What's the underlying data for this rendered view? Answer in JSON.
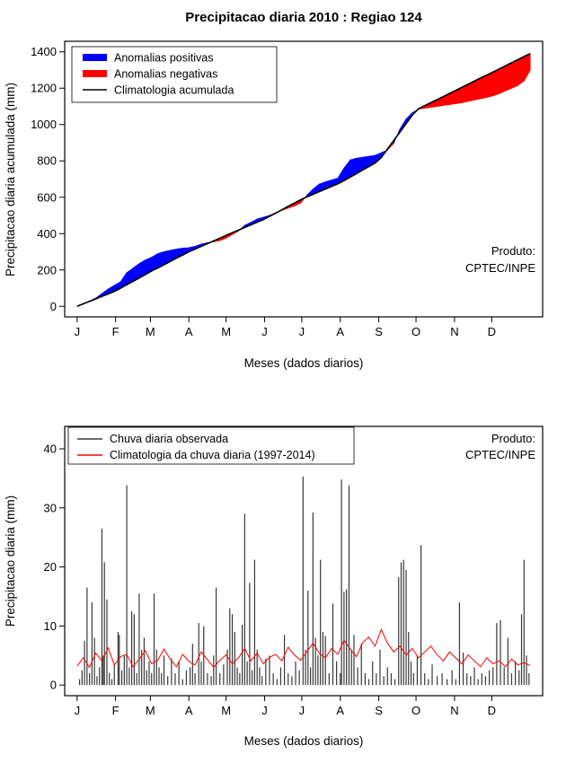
{
  "chart_data": [
    {
      "type": "area",
      "title": "Precipitacao diaria 2010 : Regiao 124",
      "xlabel": "Meses (dados diarios)",
      "ylabel": "Precipitacao diaria acumulada (mm)",
      "ylim": [
        0,
        1400
      ],
      "yticks": [
        0,
        200,
        400,
        600,
        800,
        1000,
        1200,
        1400
      ],
      "xlim_days": [
        0,
        365
      ],
      "months": {
        "labels": [
          "J",
          "F",
          "M",
          "A",
          "M",
          "J",
          "J",
          "A",
          "S",
          "O",
          "N",
          "D"
        ],
        "days": [
          0,
          31,
          59,
          90,
          120,
          151,
          181,
          212,
          243,
          273,
          304,
          334
        ]
      },
      "legend": [
        {
          "label": "Anomalias positivas",
          "color": "#0000FF",
          "thick": true
        },
        {
          "label": "Anomalias negativas",
          "color": "#FF0000",
          "thick": true
        },
        {
          "label": "Climatologia acumulada",
          "color": "#000000",
          "thick": false
        }
      ],
      "annotation": {
        "line1": "Produto:",
        "line2": "CPTEC/INPE"
      },
      "x_step_days": 5,
      "observed": [
        0,
        12,
        30,
        45,
        70,
        95,
        115,
        135,
        185,
        210,
        235,
        255,
        270,
        290,
        300,
        308,
        315,
        320,
        322,
        330,
        342,
        350,
        355,
        362,
        375,
        395,
        415,
        445,
        462,
        480,
        490,
        500,
        515,
        528,
        540,
        552,
        568,
        610,
        645,
        672,
        685,
        695,
        705,
        760,
        805,
        815,
        820,
        825,
        830,
        845,
        860,
        895,
        975,
        1030,
        1065,
        1085,
        1090,
        1095,
        1100,
        1105,
        1110,
        1115,
        1120,
        1128,
        1135,
        1142,
        1150,
        1158,
        1170,
        1185,
        1200,
        1215,
        1240,
        1300
      ],
      "climatology": [
        0,
        14,
        27,
        41,
        55,
        68,
        82,
        100,
        119,
        137,
        156,
        175,
        194,
        211,
        229,
        247,
        265,
        282,
        300,
        315,
        330,
        345,
        360,
        375,
        390,
        405,
        419,
        434,
        448,
        463,
        477,
        495,
        513,
        531,
        550,
        568,
        586,
        602,
        616,
        631,
        645,
        660,
        674,
        692,
        711,
        730,
        750,
        769,
        788,
        818,
        865,
        912,
        958,
        1005,
        1052,
        1087,
        1104,
        1121,
        1137,
        1154,
        1171,
        1188,
        1205,
        1222,
        1239,
        1256,
        1272,
        1289,
        1306,
        1323,
        1340,
        1357,
        1374,
        1390
      ]
    },
    {
      "type": "bar",
      "title": "",
      "xlabel": "Meses (dados diarios)",
      "ylabel": "Precipitacao diaria (mm)",
      "ylim": [
        0,
        40
      ],
      "yticks": [
        0,
        10,
        20,
        30,
        40
      ],
      "xlim_days": [
        0,
        365
      ],
      "months": {
        "labels": [
          "J",
          "F",
          "M",
          "A",
          "M",
          "J",
          "J",
          "A",
          "S",
          "O",
          "N",
          "D"
        ],
        "days": [
          0,
          31,
          59,
          90,
          120,
          151,
          181,
          212,
          243,
          273,
          304,
          334
        ]
      },
      "legend": [
        {
          "label": "Chuva diaria observada",
          "color": "#383838"
        },
        {
          "label": "Climatologia da chuva diaria (1997-2014)",
          "color": "#FF0000"
        }
      ],
      "annotation": {
        "line1": "Produto:",
        "line2": "CPTEC/INPE"
      },
      "bar_color": "#383838",
      "bars": [
        [
          2,
          1
        ],
        [
          4,
          2.5
        ],
        [
          6,
          7.5
        ],
        [
          8,
          16.5
        ],
        [
          10,
          2
        ],
        [
          12,
          14
        ],
        [
          14,
          8
        ],
        [
          16,
          1.5
        ],
        [
          18,
          3
        ],
        [
          20,
          26.5
        ],
        [
          21,
          5
        ],
        [
          22,
          20.8
        ],
        [
          24,
          14.5
        ],
        [
          26,
          2
        ],
        [
          28,
          1
        ],
        [
          30,
          3.5
        ],
        [
          33,
          9
        ],
        [
          34,
          8.5
        ],
        [
          36,
          2.5
        ],
        [
          38,
          5
        ],
        [
          40,
          33.8
        ],
        [
          42,
          3
        ],
        [
          44,
          12.5
        ],
        [
          46,
          12
        ],
        [
          48,
          2
        ],
        [
          50,
          15.5
        ],
        [
          52,
          6
        ],
        [
          54,
          8
        ],
        [
          56,
          2.5
        ],
        [
          58,
          4
        ],
        [
          60,
          2
        ],
        [
          62,
          15.5
        ],
        [
          64,
          6
        ],
        [
          66,
          3
        ],
        [
          68,
          2
        ],
        [
          70,
          5
        ],
        [
          73,
          1.5
        ],
        [
          76,
          4.5
        ],
        [
          79,
          2
        ],
        [
          82,
          4
        ],
        [
          85,
          1
        ],
        [
          88,
          2.5
        ],
        [
          91,
          3
        ],
        [
          93,
          7
        ],
        [
          95,
          2
        ],
        [
          98,
          10.5
        ],
        [
          100,
          4
        ],
        [
          102,
          10
        ],
        [
          105,
          2
        ],
        [
          108,
          1.5
        ],
        [
          110,
          5
        ],
        [
          112,
          16.5
        ],
        [
          115,
          2
        ],
        [
          118,
          3.5
        ],
        [
          121,
          6
        ],
        [
          123,
          13
        ],
        [
          125,
          12
        ],
        [
          127,
          9
        ],
        [
          129,
          3
        ],
        [
          131,
          2
        ],
        [
          133,
          10.2
        ],
        [
          135,
          29
        ],
        [
          137,
          4
        ],
        [
          139,
          17.3
        ],
        [
          141,
          2.5
        ],
        [
          143,
          21.2
        ],
        [
          145,
          6
        ],
        [
          147,
          3
        ],
        [
          149,
          1.5
        ],
        [
          152,
          4.5
        ],
        [
          155,
          5
        ],
        [
          158,
          2
        ],
        [
          161,
          1
        ],
        [
          164,
          3
        ],
        [
          167,
          8.5
        ],
        [
          170,
          2
        ],
        [
          173,
          1.5
        ],
        [
          176,
          4
        ],
        [
          179,
          2.5
        ],
        [
          182,
          35.3
        ],
        [
          184,
          6
        ],
        [
          186,
          16
        ],
        [
          188,
          3
        ],
        [
          190,
          29.2
        ],
        [
          192,
          8
        ],
        [
          194,
          5
        ],
        [
          196,
          21.2
        ],
        [
          198,
          9
        ],
        [
          200,
          8.3
        ],
        [
          203,
          2
        ],
        [
          206,
          13.8
        ],
        [
          209,
          4
        ],
        [
          212,
          2
        ],
        [
          213,
          34.8
        ],
        [
          215,
          15.8
        ],
        [
          217,
          16.2
        ],
        [
          219,
          33.8
        ],
        [
          221,
          6
        ],
        [
          223,
          8.5
        ],
        [
          226,
          3
        ],
        [
          229,
          7
        ],
        [
          232,
          2
        ],
        [
          235,
          1
        ],
        [
          238,
          4
        ],
        [
          241,
          2
        ],
        [
          244,
          6
        ],
        [
          247,
          1.5
        ],
        [
          250,
          3
        ],
        [
          253,
          2
        ],
        [
          256,
          1
        ],
        [
          259,
          18.3
        ],
        [
          261,
          20.8
        ],
        [
          263,
          21.2
        ],
        [
          265,
          19.5
        ],
        [
          267,
          9
        ],
        [
          269,
          4
        ],
        [
          271,
          2
        ],
        [
          274,
          5
        ],
        [
          277,
          23.7
        ],
        [
          280,
          2
        ],
        [
          283,
          1
        ],
        [
          286,
          3.5
        ],
        [
          290,
          1.5
        ],
        [
          294,
          2
        ],
        [
          298,
          1
        ],
        [
          302,
          2.5
        ],
        [
          305,
          1
        ],
        [
          308,
          14
        ],
        [
          311,
          5.5
        ],
        [
          314,
          2
        ],
        [
          317,
          1.5
        ],
        [
          320,
          3
        ],
        [
          323,
          1
        ],
        [
          326,
          2
        ],
        [
          329,
          1.5
        ],
        [
          332,
          2.5
        ],
        [
          335,
          3
        ],
        [
          338,
          10.5
        ],
        [
          341,
          11
        ],
        [
          344,
          3
        ],
        [
          347,
          8
        ],
        [
          350,
          2
        ],
        [
          353,
          4
        ],
        [
          356,
          2.5
        ],
        [
          358,
          12
        ],
        [
          360,
          21.2
        ],
        [
          362,
          5
        ],
        [
          364,
          2
        ]
      ],
      "clim_step_days": 5,
      "climatology": [
        3.2,
        4.6,
        3.0,
        5.4,
        4.1,
        6.3,
        3.4,
        4.8,
        5.2,
        3.1,
        4.4,
        5.8,
        3.6,
        4.2,
        6.1,
        4.4,
        3.1,
        5.2,
        4.0,
        3.4,
        5.6,
        4.3,
        3.0,
        4.2,
        5.1,
        3.6,
        4.6,
        6.2,
        4.1,
        5.4,
        3.6,
        4.7,
        5.2,
        4.1,
        6.4,
        5.1,
        4.2,
        5.6,
        7.1,
        5.4,
        4.6,
        6.2,
        5.2,
        7.6,
        6.1,
        4.8,
        7.2,
        8.1,
        6.6,
        9.4,
        7.1,
        5.6,
        6.6,
        5.1,
        6.2,
        4.6,
        5.6,
        6.6,
        5.1,
        4.1,
        5.6,
        4.6,
        3.6,
        5.1,
        4.1,
        3.1,
        4.6,
        3.6,
        4.1,
        3.1,
        4.4,
        3.4,
        3.8,
        3.3
      ]
    }
  ]
}
